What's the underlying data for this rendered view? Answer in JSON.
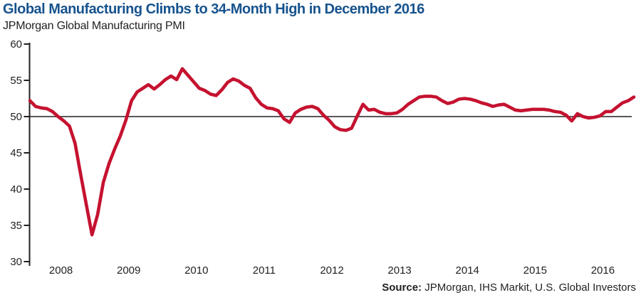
{
  "header": {
    "title": "Global Manufacturing Climbs to 34-Month High in December 2016",
    "subtitle": "JPMorgan Global Manufacturing PMI"
  },
  "footer": {
    "source_label": "Source:",
    "source_text": "JPMorgan, IHS Markit, U.S. Global Investors"
  },
  "colors": {
    "title_blue": "#17538e",
    "line_red": "#c51230",
    "axis_black": "#231f20",
    "background": "#ffffff"
  },
  "chart_data": {
    "type": "line",
    "title": "Global Manufacturing Climbs to 34-Month High in December 2016",
    "subtitle": "JPMorgan Global Manufacturing PMI",
    "x_unit": "month",
    "x_start": "2008-01",
    "x_end": "2016-12",
    "x_tick_labels": [
      "2008",
      "2009",
      "2010",
      "2011",
      "2012",
      "2013",
      "2014",
      "2015",
      "2016"
    ],
    "ylim": [
      30,
      60
    ],
    "yticks": [
      60,
      55,
      50,
      45,
      40,
      35,
      30
    ],
    "reference_line_y": 50,
    "grid": false,
    "legend": "none",
    "series": [
      {
        "name": "JPMorgan Global Manufacturing PMI",
        "values": [
          52.2,
          51.4,
          51.2,
          51.1,
          50.7,
          50.0,
          49.4,
          48.7,
          46.3,
          42.0,
          37.8,
          33.7,
          36.5,
          40.9,
          43.5,
          45.5,
          47.3,
          49.5,
          52.2,
          53.4,
          53.9,
          54.4,
          53.8,
          54.4,
          55.1,
          55.6,
          55.1,
          56.6,
          55.7,
          54.8,
          53.9,
          53.6,
          53.1,
          52.9,
          53.7,
          54.7,
          55.2,
          54.9,
          54.3,
          53.9,
          52.6,
          51.7,
          51.2,
          51.1,
          50.8,
          49.7,
          49.2,
          50.5,
          51.0,
          51.3,
          51.4,
          51.1,
          50.2,
          49.5,
          48.6,
          48.2,
          48.1,
          48.4,
          50.1,
          51.7,
          50.9,
          51.0,
          50.6,
          50.4,
          50.4,
          50.5,
          51.0,
          51.7,
          52.2,
          52.7,
          52.8,
          52.8,
          52.7,
          52.2,
          51.8,
          52.0,
          52.4,
          52.5,
          52.4,
          52.2,
          51.9,
          51.7,
          51.4,
          51.6,
          51.7,
          51.3,
          50.9,
          50.8,
          50.9,
          51.0,
          51.0,
          51.0,
          50.9,
          50.7,
          50.6,
          50.2,
          49.4,
          50.4,
          50.0,
          49.8,
          49.9,
          50.1,
          50.7,
          50.7,
          51.3,
          51.9,
          52.2,
          52.7
        ]
      }
    ]
  }
}
